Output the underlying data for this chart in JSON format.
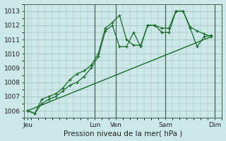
{
  "background_color": "#cce8e8",
  "grid_color": "#99bbbb",
  "line_color": "#1a6b2a",
  "xlabel": "Pression niveau de la mer( hPa )",
  "ylim": [
    1005.5,
    1013.5
  ],
  "yticks": [
    1006,
    1007,
    1008,
    1009,
    1010,
    1011,
    1012,
    1013
  ],
  "xlim": [
    0,
    28
  ],
  "xtick_positions": [
    0.5,
    10,
    13,
    20,
    27
  ],
  "xtick_labels": [
    "Jeu",
    "Lun",
    "Ven",
    "Sam",
    "Dim"
  ],
  "vlines": [
    10,
    13,
    20,
    27
  ],
  "series1": {
    "x": [
      0.5,
      1.5,
      2.5,
      3.5,
      4.5,
      5.5,
      6.5,
      7.5,
      8.5,
      9.5,
      10.5,
      11.5,
      12.5,
      13.5,
      14.5,
      15.5,
      16.5,
      17.5,
      18.5,
      19.5,
      20.5,
      21.5,
      22.5,
      23.5,
      24.5,
      25.5,
      26.5
    ],
    "y": [
      1006.0,
      1005.8,
      1006.5,
      1006.8,
      1007.0,
      1007.4,
      1007.8,
      1008.0,
      1008.4,
      1009.0,
      1009.8,
      1011.6,
      1012.0,
      1010.5,
      1010.5,
      1011.5,
      1010.5,
      1012.0,
      1012.0,
      1011.5,
      1011.5,
      1013.0,
      1013.0,
      1011.8,
      1010.5,
      1011.2,
      1011.3
    ]
  },
  "series2": {
    "x": [
      0.5,
      1.5,
      2.5,
      3.5,
      4.5,
      5.5,
      6.5,
      7.5,
      8.5,
      9.5,
      10.5,
      11.5,
      12.5,
      13.5,
      14.5,
      15.5,
      16.5,
      17.5,
      18.5,
      19.5,
      20.5,
      21.5,
      22.5,
      23.5,
      24.5,
      25.5,
      26.5
    ],
    "y": [
      1006.0,
      1005.8,
      1006.8,
      1007.0,
      1007.2,
      1007.6,
      1008.2,
      1008.6,
      1008.8,
      1009.2,
      1010.0,
      1011.8,
      1012.2,
      1012.7,
      1011.0,
      1010.6,
      1010.6,
      1012.0,
      1012.0,
      1011.8,
      1011.8,
      1013.0,
      1013.0,
      1011.9,
      1011.6,
      1011.4,
      1011.2
    ]
  },
  "trend": {
    "x": [
      0.5,
      26.5
    ],
    "y": [
      1006.0,
      1011.2
    ]
  }
}
